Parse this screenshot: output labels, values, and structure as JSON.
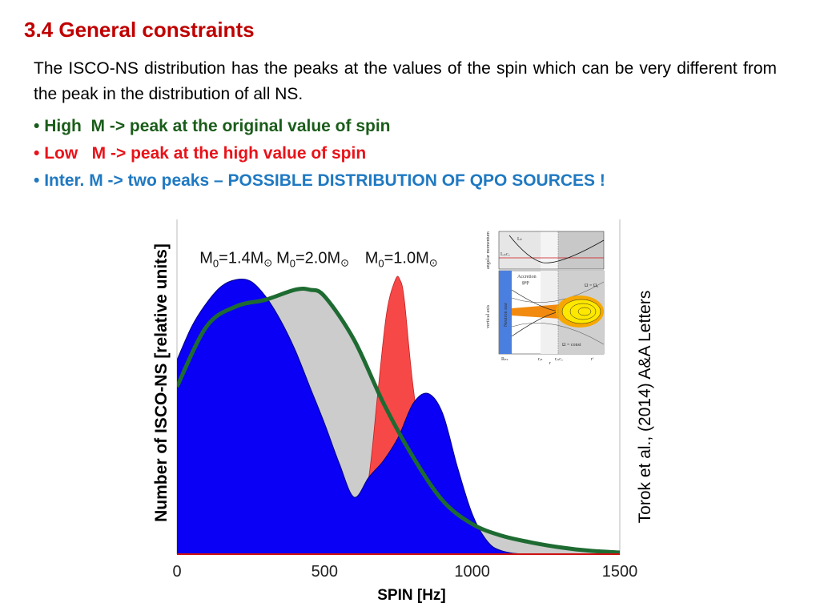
{
  "slide": {
    "title": "3.4 General constraints",
    "paragraph": "The ISCO-NS distribution has the peaks at the values of the spin which can be very different from the peak in the distribution of all NS.",
    "bullets": [
      {
        "marker": "•",
        "text": " High  M -> peak at the original value of spin",
        "color": "#1a5c1a"
      },
      {
        "marker": "•",
        "text": " Low   M -> peak at the high value of spin",
        "color": "#e8131a"
      },
      {
        "marker": "•",
        "text": " Inter. M -> two peaks – ",
        "caps": "POSSIBLE DISTRIBUTION OF QPO SOURCES !",
        "color": "#1f79c2"
      }
    ],
    "citation": "Torok et al., (2014) A&A Letters"
  },
  "inset": {
    "labels": {
      "accretion": "Accretion",
      "gap": "gap",
      "neutron_star": "Neutron star",
      "angular_momentum": "angular momentum",
      "vertical_axis": "vertical axis",
      "l_k": "Lₖ",
      "l_isco": "Lᵢₛᴄₒ",
      "r_ns": "Rₙₛ",
      "r_in": "rᵢₙ",
      "r_isco": "rᵢₛᴄₒ",
      "r_c": "rᶜ",
      "r": "r",
      "omega_eq": "Ω = Ω₀",
      "omega_const": "Ω = const"
    }
  },
  "chart_data": {
    "type": "area",
    "title": "",
    "xlabel": "SPIN [Hz]",
    "ylabel": "Number of ISCO-NS [relative units]",
    "xlim": [
      0,
      1500
    ],
    "ylim": [
      0,
      1.0
    ],
    "x_ticks": [
      "0",
      "500",
      "1000",
      "1500"
    ],
    "x_tick_values": [
      0,
      500,
      1000,
      1500
    ],
    "grid": false,
    "colors": {
      "m14": "#0a00f5",
      "m20_fill": "#cccccc",
      "m20_line": "#1e6b32",
      "m10": "#f74848"
    },
    "annotations": [
      {
        "text": "M",
        "sub": "0",
        "tail": "=1.4M",
        "sun": "⊙",
        "x": 200,
        "y": 0.87
      },
      {
        "text": "M",
        "sub": "0",
        "tail": "=2.0M",
        "sun": "⊙",
        "x": 460,
        "y": 0.87
      },
      {
        "text": "M",
        "sub": "0",
        "tail": "=1.0M",
        "sun": "⊙",
        "x": 760,
        "y": 0.87
      }
    ],
    "series": [
      {
        "name": "M0=2.0M⊙",
        "x": [
          0,
          100,
          200,
          300,
          400,
          450,
          500,
          600,
          700,
          800,
          900,
          1000,
          1100,
          1200,
          1300,
          1400,
          1500
        ],
        "values": [
          0.5,
          0.68,
          0.74,
          0.76,
          0.79,
          0.79,
          0.77,
          0.64,
          0.45,
          0.29,
          0.16,
          0.09,
          0.055,
          0.035,
          0.02,
          0.01,
          0.005
        ]
      },
      {
        "name": "M0=1.4M⊙",
        "x": [
          0,
          50,
          100,
          150,
          200,
          250,
          300,
          350,
          400,
          450,
          500,
          550,
          600,
          650,
          700,
          750,
          800,
          850,
          900,
          950,
          1000,
          1050,
          1100,
          1200,
          1500
        ],
        "values": [
          0.58,
          0.68,
          0.75,
          0.8,
          0.82,
          0.815,
          0.77,
          0.7,
          0.61,
          0.5,
          0.39,
          0.27,
          0.17,
          0.23,
          0.28,
          0.35,
          0.45,
          0.48,
          0.42,
          0.26,
          0.12,
          0.04,
          0.01,
          0.0,
          0.0
        ]
      },
      {
        "name": "M0=1.0M⊙",
        "x": [
          0,
          100,
          200,
          300,
          400,
          500,
          600,
          650,
          680,
          710,
          740,
          755,
          770,
          800,
          850,
          900,
          1000,
          1500
        ],
        "values": [
          0,
          0,
          0,
          0,
          0,
          0,
          0,
          0.23,
          0.48,
          0.72,
          0.82,
          0.82,
          0.76,
          0.5,
          0.2,
          0.04,
          0,
          0
        ]
      }
    ]
  }
}
